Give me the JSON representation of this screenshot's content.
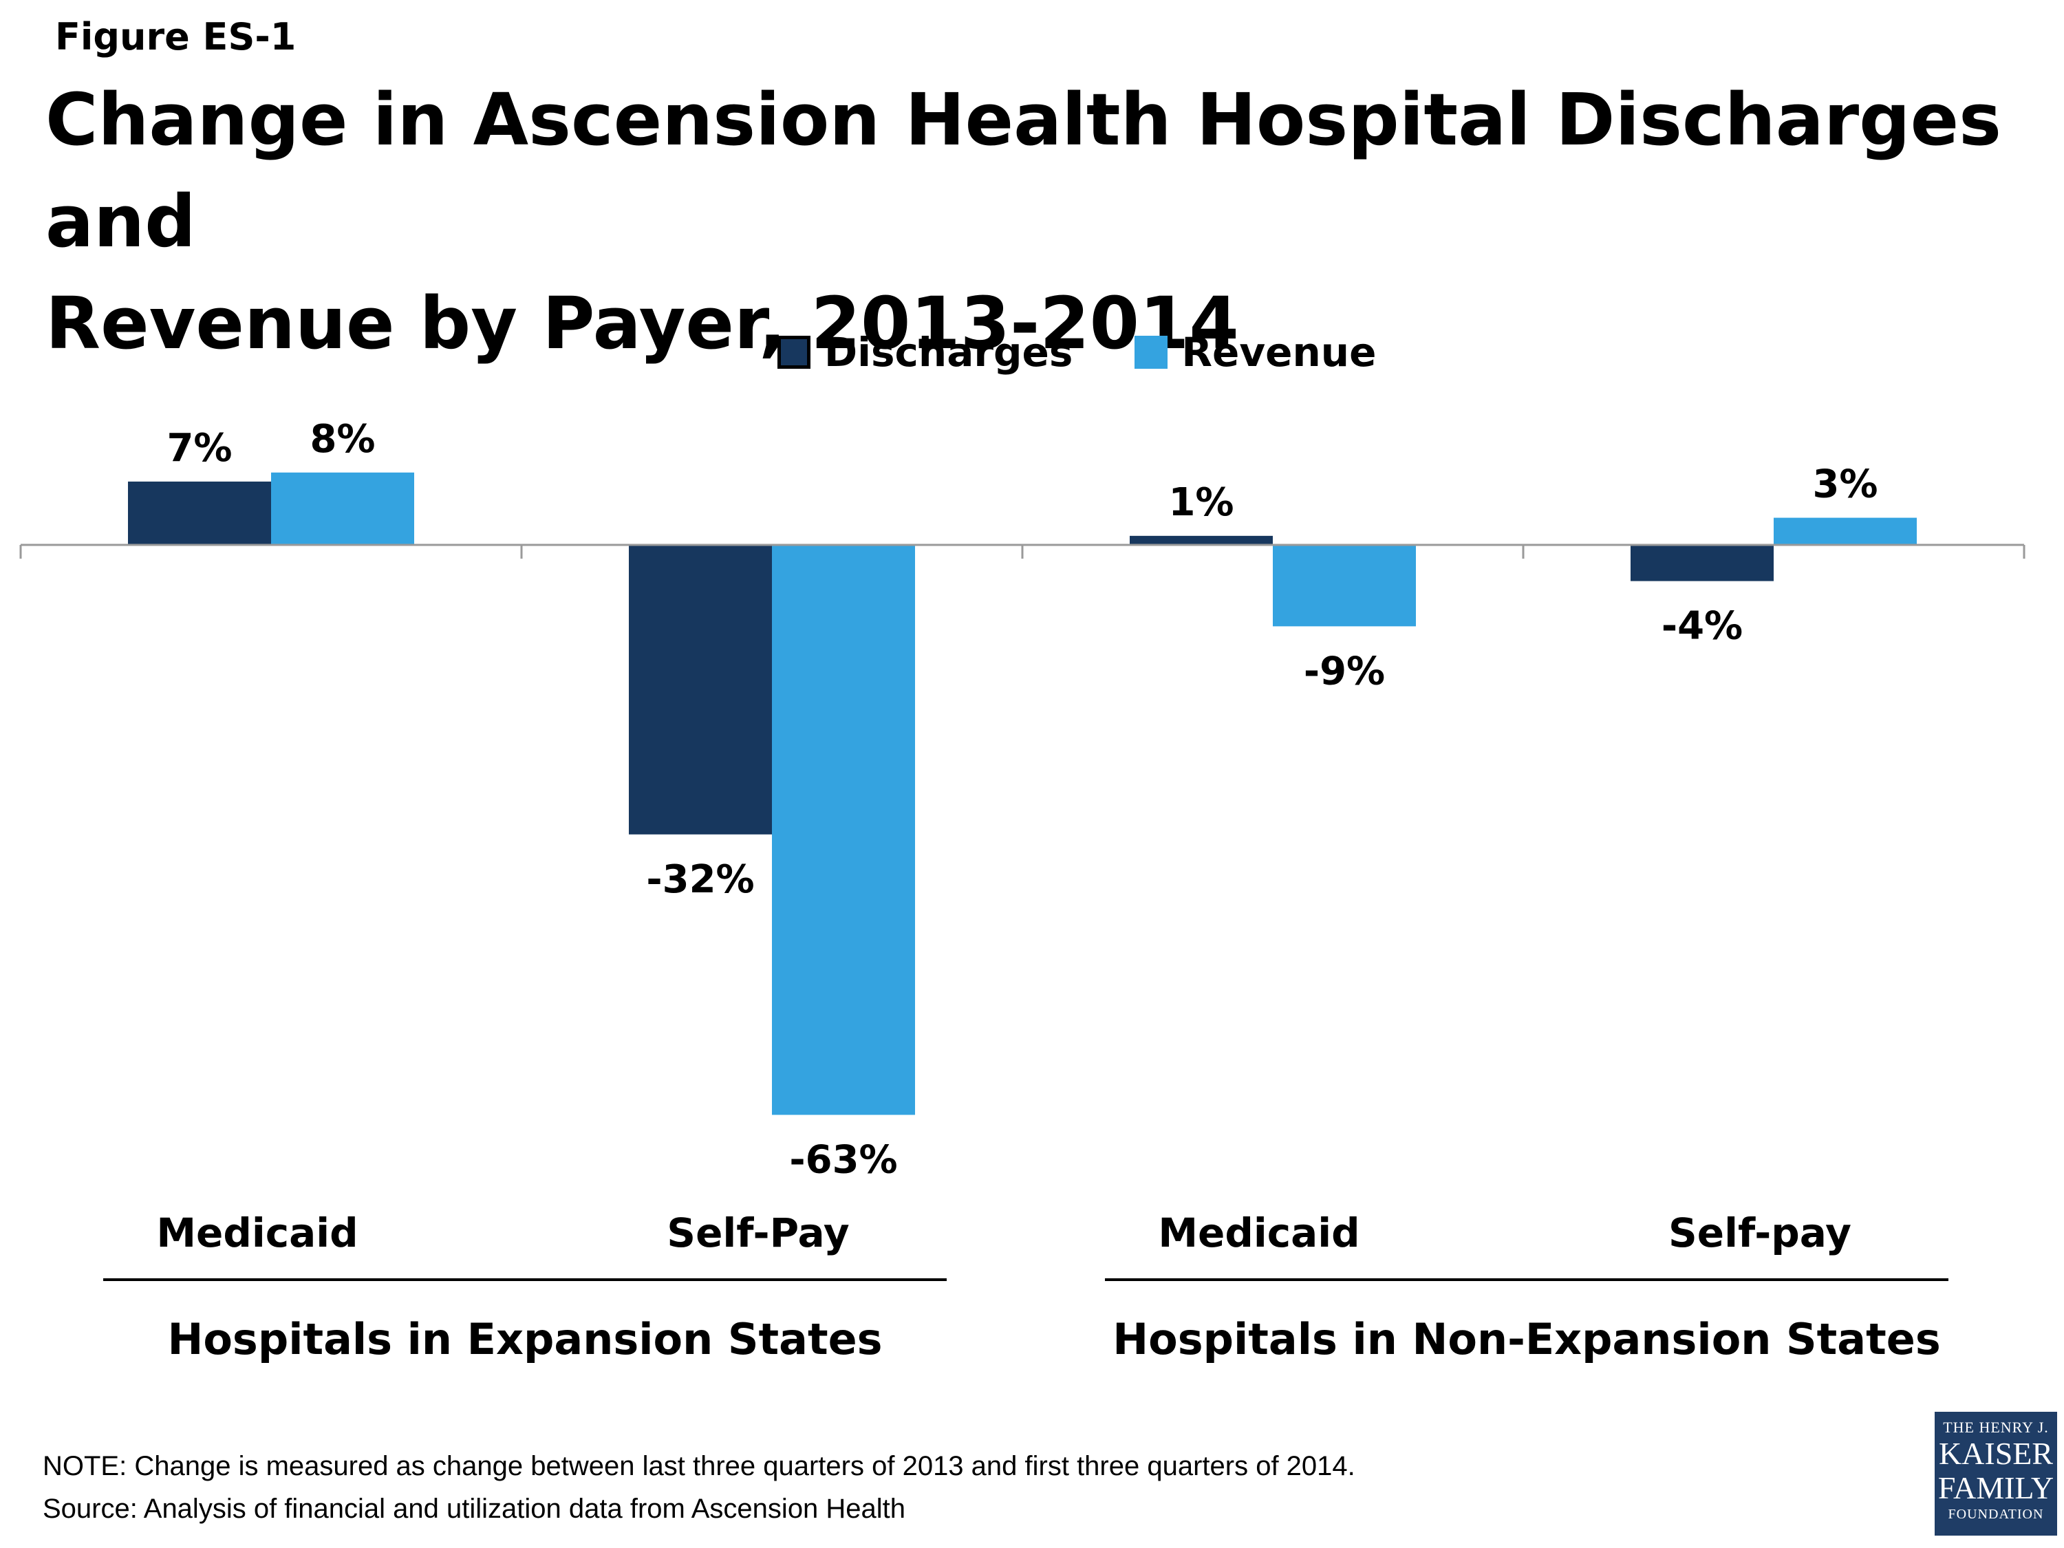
{
  "header": {
    "figure_label": "Figure ES-1",
    "title_line1": "Change in Ascension Health Hospital Discharges and",
    "title_line2": "Revenue by Payer, 2013-2014"
  },
  "colors": {
    "discharges": "#17375e",
    "revenue": "#34a3e0"
  },
  "chart_data": {
    "type": "bar",
    "categories": [
      "Medicaid",
      "Self-Pay",
      "Medicaid",
      "Self-pay"
    ],
    "groups": [
      {
        "label": "Hospitals in Expansion States",
        "categories": [
          0,
          1
        ]
      },
      {
        "label": "Hospitals in Non-Expansion States",
        "categories": [
          2,
          3
        ]
      }
    ],
    "series": [
      {
        "name": "Discharges",
        "values": [
          7,
          -32,
          1,
          -4
        ],
        "labels": [
          "7%",
          "-32%",
          "1%",
          "-4%"
        ]
      },
      {
        "name": "Revenue",
        "values": [
          8,
          -63,
          -9,
          3
        ],
        "labels": [
          "8%",
          "-63%",
          "-9%",
          "3%"
        ]
      }
    ],
    "title": "Change in Ascension Health Hospital Discharges and Revenue by Payer, 2013-2014",
    "ylabel": "",
    "ylim": [
      -70,
      15
    ],
    "grid": false,
    "legend": "top-center"
  },
  "footer": {
    "note": "NOTE: Change is measured as change between last three quarters of 2013 and first three quarters of 2014.",
    "source": "Source: Analysis of financial and utilization data from Ascension Health"
  },
  "logo": {
    "line1": "THE HENRY J.",
    "line2": "KAISER",
    "line3": "FAMILY",
    "line4": "FOUNDATION"
  }
}
